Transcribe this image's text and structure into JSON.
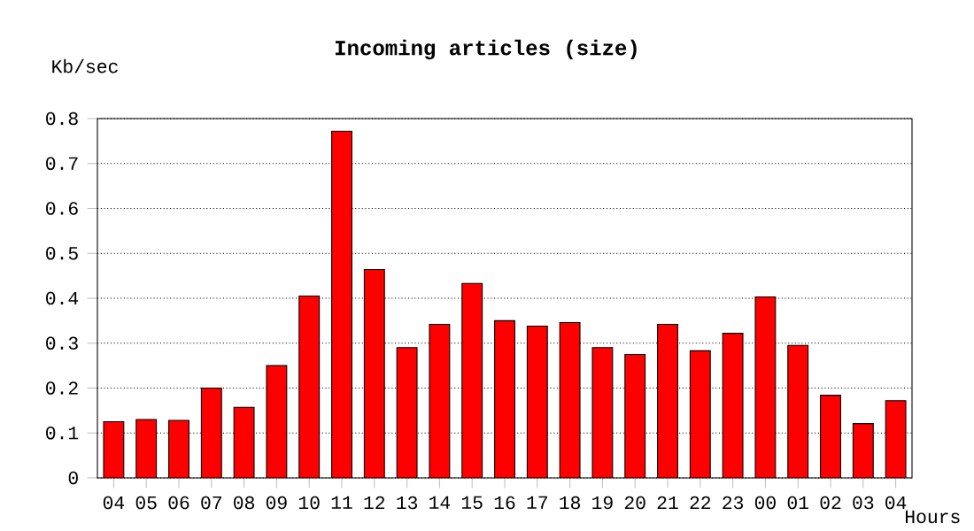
{
  "chart_data": {
    "type": "bar",
    "title": "Incoming articles (size)",
    "ylabel": "Kb/sec",
    "xlabel": "Hours",
    "categories": [
      "04",
      "05",
      "06",
      "07",
      "08",
      "09",
      "10",
      "11",
      "12",
      "13",
      "14",
      "15",
      "16",
      "17",
      "18",
      "19",
      "20",
      "21",
      "22",
      "23",
      "00",
      "01",
      "02",
      "03",
      "04"
    ],
    "values": [
      0.125,
      0.13,
      0.128,
      0.2,
      0.157,
      0.25,
      0.405,
      0.772,
      0.464,
      0.29,
      0.342,
      0.433,
      0.35,
      0.338,
      0.346,
      0.29,
      0.275,
      0.342,
      0.283,
      0.322,
      0.403,
      0.295,
      0.184,
      0.121,
      0.172
    ],
    "color": "#ff0000",
    "ylim": [
      0,
      0.8
    ],
    "yticks": [
      0,
      0.1,
      0.2,
      0.3,
      0.4,
      0.5,
      0.6,
      0.7,
      0.8
    ],
    "grid": "y"
  }
}
